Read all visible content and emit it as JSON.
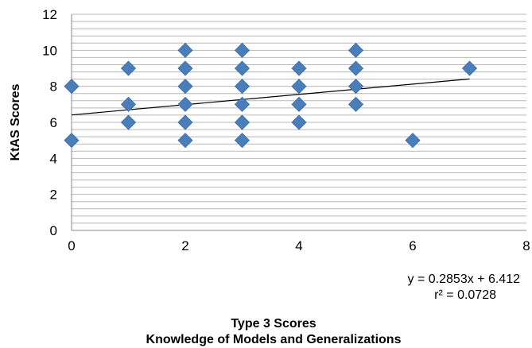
{
  "chart_data": {
    "type": "scatter",
    "xlabel_line1": "Type 3 Scores",
    "xlabel_line2": "Knowledge of Models and Generalizations",
    "ylabel": "KtAS Scores",
    "xlim": [
      0,
      8
    ],
    "ylim": [
      0,
      12
    ],
    "x_ticks": [
      0,
      2,
      4,
      6,
      8
    ],
    "y_ticks": [
      0,
      2,
      4,
      6,
      8,
      10,
      12
    ],
    "x_tick_labels": [
      "0",
      "2",
      "4",
      "6",
      "8"
    ],
    "y_tick_labels": [
      "0",
      "2",
      "4",
      "6",
      "8",
      "10",
      "12"
    ],
    "grid": true,
    "marker": "diamond",
    "marker_color": "#4a7ebb",
    "trendline_color": "#000000",
    "points": [
      {
        "x": 0,
        "y": 8
      },
      {
        "x": 0,
        "y": 5
      },
      {
        "x": 1,
        "y": 9
      },
      {
        "x": 1,
        "y": 7
      },
      {
        "x": 1,
        "y": 6
      },
      {
        "x": 2,
        "y": 10
      },
      {
        "x": 2,
        "y": 9
      },
      {
        "x": 2,
        "y": 8
      },
      {
        "x": 2,
        "y": 7
      },
      {
        "x": 2,
        "y": 6
      },
      {
        "x": 2,
        "y": 5
      },
      {
        "x": 3,
        "y": 10
      },
      {
        "x": 3,
        "y": 9
      },
      {
        "x": 3,
        "y": 8
      },
      {
        "x": 3,
        "y": 7
      },
      {
        "x": 3,
        "y": 6
      },
      {
        "x": 3,
        "y": 5
      },
      {
        "x": 4,
        "y": 9
      },
      {
        "x": 4,
        "y": 8
      },
      {
        "x": 4,
        "y": 7
      },
      {
        "x": 4,
        "y": 6
      },
      {
        "x": 5,
        "y": 10
      },
      {
        "x": 5,
        "y": 9
      },
      {
        "x": 5,
        "y": 8
      },
      {
        "x": 5,
        "y": 7
      },
      {
        "x": 6,
        "y": 5
      },
      {
        "x": 7,
        "y": 9
      }
    ],
    "trendline": {
      "slope": 0.2853,
      "intercept": 6.412,
      "x_start": 0,
      "x_end": 7
    },
    "equation_text": "y = 0.2853x + 6.412",
    "r2_text": "r² = 0.0728"
  }
}
